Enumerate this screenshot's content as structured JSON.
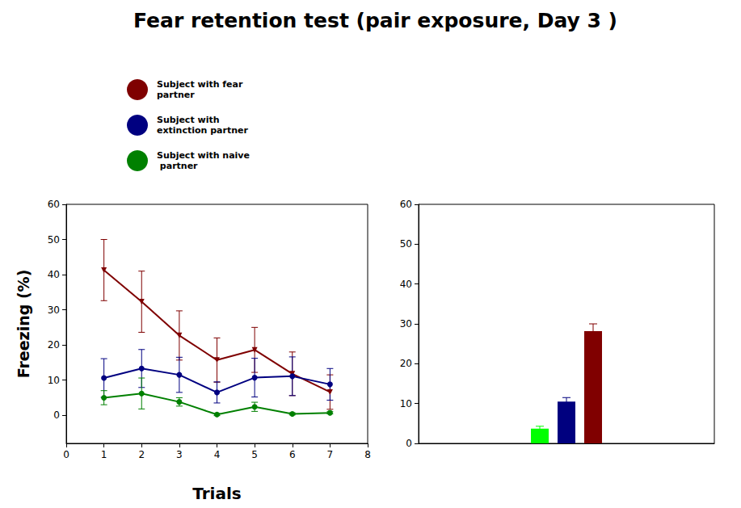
{
  "title": "Fear retention test (pair exposure, Day 3 )",
  "chart_data": [
    {
      "type": "line",
      "x_label": "Trials",
      "y_label": "Freezing (%)",
      "x": [
        1,
        2,
        3,
        4,
        5,
        6,
        7
      ],
      "xlim": [
        0,
        8
      ],
      "xticks": [
        0,
        1,
        2,
        3,
        4,
        5,
        6,
        7,
        8
      ],
      "ylim": [
        -8,
        60
      ],
      "yticks": [
        0,
        10,
        20,
        30,
        40,
        50,
        60
      ],
      "grid": false,
      "legend": "upper left",
      "series": [
        {
          "name": "Subject with fear partner",
          "color": "#7f0000",
          "marker": "triangle-down",
          "values": [
            41.3,
            32.3,
            22.7,
            15.7,
            18.6,
            11.8,
            6.6
          ],
          "errors": [
            8.7,
            8.7,
            7.0,
            6.3,
            6.4,
            6.2,
            4.9
          ]
        },
        {
          "name": "Subject with extinction partner",
          "color": "#000080",
          "marker": "circle",
          "values": [
            10.6,
            13.3,
            11.5,
            6.5,
            10.7,
            11.1,
            8.8
          ],
          "errors": [
            5.5,
            5.4,
            5.0,
            3.0,
            5.5,
            5.5,
            4.5
          ]
        },
        {
          "name": "Subject with naive partner",
          "color": "#008000",
          "marker": "circle",
          "values": [
            5.0,
            6.2,
            3.8,
            0.2,
            2.4,
            0.4,
            0.7
          ],
          "errors": [
            2.0,
            4.4,
            1.2,
            0.3,
            1.3,
            0.3,
            0.3
          ]
        }
      ]
    },
    {
      "type": "bar",
      "categories": [
        null
      ],
      "ylim": [
        0,
        60
      ],
      "yticks": [
        0,
        10,
        20,
        30,
        40,
        50,
        60
      ],
      "grid": false,
      "tick_labels": "y",
      "series": [
        {
          "name": "Subject with naive partner",
          "color": "#00ff00",
          "values": [
            3.7
          ],
          "errors": [
            0.6
          ]
        },
        {
          "name": "Subject with extinction partner",
          "color": "#00007f",
          "values": [
            10.5
          ],
          "errors": [
            1.0
          ]
        },
        {
          "name": "Subject with fear partner",
          "color": "#800000",
          "values": [
            28.2
          ],
          "errors": [
            1.8
          ]
        }
      ]
    }
  ]
}
